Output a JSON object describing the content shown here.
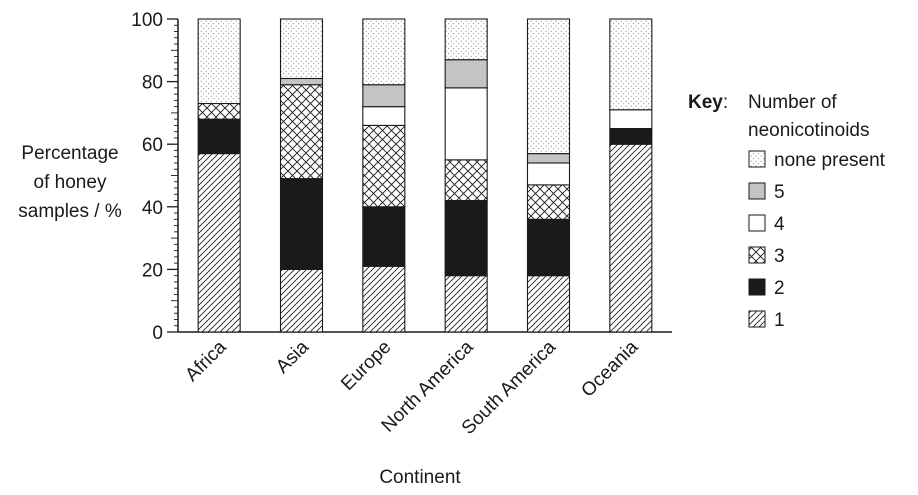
{
  "chart_data": {
    "type": "bar",
    "stacked": true,
    "xlabel": "Continent",
    "ylabel_lines": [
      "Percentage",
      "of honey",
      "samples / %"
    ],
    "ylim": [
      0,
      100
    ],
    "yticks": [
      0,
      20,
      40,
      60,
      80,
      100
    ],
    "categories": [
      "Africa",
      "Asia",
      "Europe",
      "North America",
      "South America",
      "Oceania"
    ],
    "series": [
      {
        "name": "1",
        "pattern": "hatch-diagonal",
        "values": [
          57,
          20,
          21,
          18,
          18,
          60
        ]
      },
      {
        "name": "2",
        "pattern": "solid-black",
        "values": [
          11,
          29,
          19,
          24,
          18,
          5
        ]
      },
      {
        "name": "3",
        "pattern": "crosshatch",
        "values": [
          5,
          30,
          26,
          13,
          11,
          0
        ]
      },
      {
        "name": "4",
        "pattern": "white",
        "values": [
          0,
          0,
          6,
          23,
          7,
          6
        ]
      },
      {
        "name": "5",
        "pattern": "grey",
        "values": [
          0,
          2,
          7,
          9,
          3,
          0
        ]
      },
      {
        "name": "none present",
        "pattern": "dots",
        "values": [
          27,
          19,
          21,
          13,
          43,
          29
        ]
      }
    ],
    "legend": {
      "placement": "right",
      "key_label": "Key",
      "title_lines": [
        "Number of",
        "neonicotinoids"
      ],
      "order": [
        "none present",
        "5",
        "4",
        "3",
        "2",
        "1"
      ]
    },
    "colors": {
      "grey": "#c4c4c4",
      "black": "#1a1a1a"
    }
  }
}
